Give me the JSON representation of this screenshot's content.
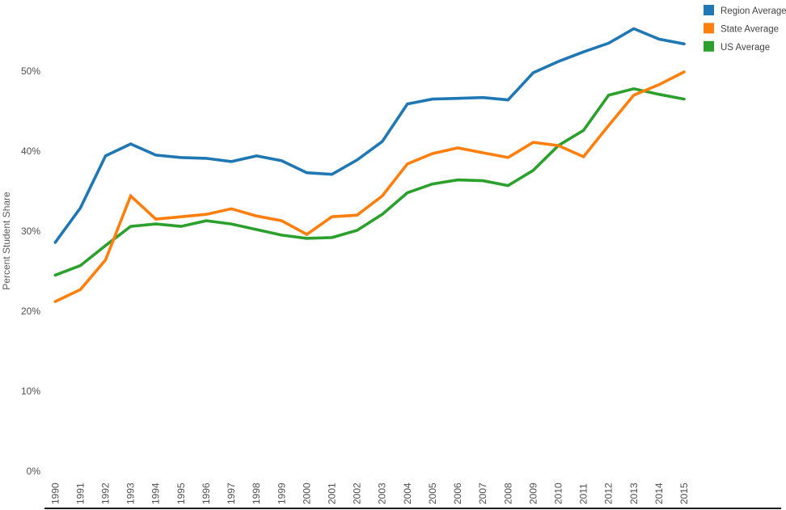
{
  "chart_data": {
    "type": "line",
    "title": "",
    "xlabel": "",
    "ylabel": "Percent Student Share",
    "x": [
      1990,
      1991,
      1992,
      1993,
      1994,
      1995,
      1996,
      1997,
      1998,
      1999,
      2000,
      2001,
      2002,
      2003,
      2004,
      2005,
      2006,
      2007,
      2008,
      2009,
      2010,
      2011,
      2012,
      2013,
      2014,
      2015
    ],
    "series": [
      {
        "name": "Region Average",
        "color": "#1f77b4",
        "values": [
          28.6,
          32.9,
          39.4,
          40.9,
          39.5,
          39.2,
          39.1,
          38.7,
          39.4,
          38.8,
          37.3,
          37.1,
          38.9,
          41.2,
          45.9,
          46.5,
          46.6,
          46.7,
          46.4,
          49.8,
          51.2,
          52.4,
          53.5,
          55.3,
          54.0,
          53.4
        ]
      },
      {
        "name": "State Average",
        "color": "#ff7f0e",
        "values": [
          21.2,
          22.7,
          26.4,
          34.4,
          31.5,
          31.8,
          32.1,
          32.8,
          31.9,
          31.3,
          29.6,
          31.8,
          32.0,
          34.4,
          38.4,
          39.7,
          40.4,
          39.8,
          39.2,
          41.1,
          40.7,
          39.3,
          43.2,
          47.0,
          48.3,
          49.9
        ]
      },
      {
        "name": "US Average",
        "color": "#2ca02c",
        "values": [
          24.5,
          25.7,
          28.2,
          30.6,
          30.9,
          30.6,
          31.3,
          30.9,
          30.2,
          29.5,
          29.1,
          29.2,
          30.1,
          32.1,
          34.8,
          35.9,
          36.4,
          36.3,
          35.7,
          37.6,
          40.7,
          42.6,
          47.0,
          47.8,
          47.1,
          46.5
        ]
      }
    ],
    "ylim": [
      0,
      57.5
    ],
    "yticks": [
      0,
      10,
      20,
      30,
      40,
      50
    ],
    "ytick_labels": [
      "0%",
      "10%",
      "20%",
      "30%",
      "40%",
      "50%"
    ],
    "grid": false,
    "legend_position": "top-right",
    "legend": [
      "Region Average",
      "State Average",
      "US Average"
    ],
    "axis_line_color": "#1a1a1a",
    "tick_label_color": "#4f4f4f",
    "axis_title_color": "#5b5b5b",
    "legend_text_color": "#444444"
  }
}
